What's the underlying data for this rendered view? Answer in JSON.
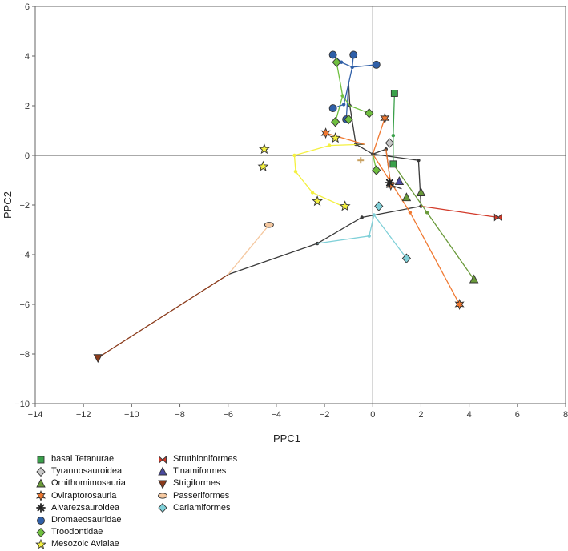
{
  "chart_data": {
    "type": "scatter",
    "title": "",
    "xlabel": "PPC1",
    "ylabel": "PPC2",
    "xlim": [
      -14,
      8
    ],
    "ylim": [
      -10,
      6
    ],
    "xticks": [
      -14,
      -12,
      -10,
      -8,
      -6,
      -4,
      -2,
      0,
      2,
      4,
      6,
      8
    ],
    "yticks": [
      -10,
      -8,
      -6,
      -4,
      -2,
      0,
      2,
      4,
      6
    ],
    "grid": false,
    "reference_lines": {
      "x": 0,
      "y": 0
    },
    "legend_position": "bottom-left",
    "series": [
      {
        "name": "basal Tetanurae",
        "marker": "square",
        "color": "#3aa04a",
        "points": [
          [
            0.9,
            2.5
          ],
          [
            0.85,
            -0.35
          ]
        ]
      },
      {
        "name": "Tyrannosauroidea",
        "marker": "diamond",
        "color": "#c8c8c8",
        "points": [
          [
            0.7,
            0.5
          ]
        ]
      },
      {
        "name": "Ornithomimosauria",
        "marker": "triangle",
        "color": "#6a9a3a",
        "points": [
          [
            1.4,
            -1.7
          ],
          [
            2.0,
            -1.5
          ],
          [
            4.2,
            -5.0
          ]
        ]
      },
      {
        "name": "Oviraptorosauria",
        "marker": "star6",
        "color": "#f07830",
        "points": [
          [
            -1.95,
            0.9
          ],
          [
            0.5,
            1.5
          ],
          [
            0.75,
            -1.2
          ],
          [
            3.6,
            -6.0
          ]
        ]
      },
      {
        "name": "Alvarezsauroidea",
        "marker": "asterisk",
        "color": "#222222",
        "points": [
          [
            0.7,
            -1.1
          ]
        ]
      },
      {
        "name": "Dromaeosauridae",
        "marker": "circle",
        "color": "#2f5fa8",
        "points": [
          [
            -1.65,
            4.05
          ],
          [
            -0.8,
            4.05
          ],
          [
            0.15,
            3.65
          ],
          [
            -1.65,
            1.9
          ],
          [
            -1.1,
            1.45
          ]
        ]
      },
      {
        "name": "Troodontidae",
        "marker": "diamond",
        "color": "#6fbf3f",
        "points": [
          [
            -1.5,
            3.75
          ],
          [
            -1.55,
            1.35
          ],
          [
            -1.0,
            1.45
          ],
          [
            -0.15,
            1.7
          ],
          [
            0.15,
            -0.6
          ]
        ]
      },
      {
        "name": "Mesozoic Avialae",
        "marker": "star5",
        "color": "#f4f040",
        "points": [
          [
            -4.5,
            0.25
          ],
          [
            -4.55,
            -0.45
          ],
          [
            -1.55,
            0.7
          ],
          [
            -2.3,
            -1.85
          ],
          [
            -1.15,
            -2.05
          ]
        ]
      },
      {
        "name": "Struthioniformes",
        "marker": "bowtie",
        "color": "#d23a2a",
        "points": [
          [
            5.2,
            -2.5
          ]
        ]
      },
      {
        "name": "Tinamiformes",
        "marker": "triangle",
        "color": "#4a4aa0",
        "points": [
          [
            1.1,
            -1.05
          ]
        ]
      },
      {
        "name": "Strigiformes",
        "marker": "triangle-down",
        "color": "#8a3a1a",
        "points": [
          [
            -11.4,
            -8.15
          ]
        ]
      },
      {
        "name": "Passeriformes",
        "marker": "ellipse",
        "color": "#f5c8a0",
        "points": [
          [
            -4.3,
            -2.8
          ]
        ]
      },
      {
        "name": "Cariamiformes",
        "marker": "diamond",
        "color": "#7fd0d8",
        "points": [
          [
            0.25,
            -2.05
          ],
          [
            1.4,
            -4.15
          ]
        ]
      }
    ],
    "tree_branches": [
      {
        "color": "#3a3a3a",
        "nodes": [
          [
            -6.0,
            -4.8
          ],
          [
            -2.3,
            -3.55
          ],
          [
            -0.45,
            -2.5
          ],
          [
            2.0,
            -2.05
          ],
          [
            1.9,
            -0.2
          ],
          [
            0.0,
            0.05
          ],
          [
            -0.7,
            0.45
          ],
          [
            -0.95,
            2.0
          ],
          [
            -1.0,
            2.9
          ]
        ]
      },
      {
        "color": "#3a3a3a",
        "nodes": [
          [
            0.0,
            0.05
          ],
          [
            0.55,
            0.25
          ],
          [
            0.75,
            -1.2
          ],
          [
            1.2,
            -1.35
          ]
        ]
      },
      {
        "color": "#f4f040",
        "nodes": [
          [
            -0.35,
            0.45
          ],
          [
            -1.8,
            0.4
          ],
          [
            -3.25,
            0.0
          ],
          [
            -3.2,
            -0.65
          ],
          [
            -2.5,
            -1.5
          ],
          [
            -1.25,
            -2.05
          ]
        ]
      },
      {
        "color": "#3a3a3a",
        "nodes": [
          [
            -0.35,
            0.45
          ],
          [
            -0.7,
            0.45
          ]
        ]
      },
      {
        "color": "#8a3a1a",
        "nodes": [
          [
            -6.0,
            -4.8
          ],
          [
            -11.4,
            -8.15
          ]
        ]
      },
      {
        "color": "#f5c8a0",
        "nodes": [
          [
            -6.0,
            -4.8
          ],
          [
            -4.3,
            -2.8
          ]
        ]
      },
      {
        "color": "#7fd0d8",
        "nodes": [
          [
            -2.3,
            -3.55
          ],
          [
            -0.15,
            -3.25
          ],
          [
            0.05,
            -2.4
          ],
          [
            1.4,
            -4.15
          ]
        ]
      },
      {
        "color": "#d23a2a",
        "nodes": [
          [
            2.0,
            -2.05
          ],
          [
            5.2,
            -2.5
          ]
        ]
      },
      {
        "color": "#6a9a3a",
        "nodes": [
          [
            0.85,
            -0.35
          ],
          [
            2.25,
            -2.3
          ],
          [
            4.2,
            -5.0
          ]
        ]
      },
      {
        "color": "#f07830",
        "nodes": [
          [
            0.0,
            0.05
          ],
          [
            1.55,
            -2.3
          ],
          [
            3.6,
            -6.0
          ]
        ]
      },
      {
        "color": "#f07830",
        "nodes": [
          [
            0.0,
            0.05
          ],
          [
            0.5,
            1.5
          ]
        ]
      },
      {
        "color": "#f07830",
        "nodes": [
          [
            -0.35,
            0.45
          ],
          [
            -1.95,
            0.9
          ]
        ]
      },
      {
        "color": "#2f5fa8",
        "nodes": [
          [
            -1.0,
            2.9
          ],
          [
            -0.85,
            3.55
          ],
          [
            -1.3,
            3.75
          ],
          [
            -1.65,
            4.05
          ]
        ]
      },
      {
        "color": "#2f5fa8",
        "nodes": [
          [
            -0.85,
            3.55
          ],
          [
            -0.8,
            4.05
          ]
        ]
      },
      {
        "color": "#2f5fa8",
        "nodes": [
          [
            -0.85,
            3.55
          ],
          [
            0.15,
            3.65
          ]
        ]
      },
      {
        "color": "#2f5fa8",
        "nodes": [
          [
            -1.0,
            2.9
          ],
          [
            -1.2,
            2.05
          ],
          [
            -1.65,
            1.9
          ]
        ]
      },
      {
        "color": "#2f5fa8",
        "nodes": [
          [
            -1.0,
            2.9
          ],
          [
            -1.1,
            1.45
          ]
        ]
      },
      {
        "color": "#6fbf3f",
        "nodes": [
          [
            -0.95,
            2.0
          ],
          [
            -1.25,
            2.4
          ],
          [
            -1.5,
            3.75
          ]
        ]
      },
      {
        "color": "#6fbf3f",
        "nodes": [
          [
            -1.25,
            2.4
          ],
          [
            -1.55,
            1.35
          ]
        ]
      },
      {
        "color": "#6fbf3f",
        "nodes": [
          [
            -0.95,
            2.0
          ],
          [
            -0.15,
            1.7
          ]
        ]
      },
      {
        "color": "#6fbf3f",
        "nodes": [
          [
            0.0,
            0.05
          ],
          [
            0.15,
            -0.6
          ]
        ]
      },
      {
        "color": "#3aa04a",
        "nodes": [
          [
            0.85,
            -0.35
          ],
          [
            0.85,
            0.8
          ],
          [
            0.9,
            2.5
          ]
        ]
      },
      {
        "color": "#f07830",
        "nodes": [
          [
            0.55,
            0.25
          ],
          [
            0.75,
            -1.2
          ]
        ]
      }
    ],
    "extra_markers": [
      {
        "marker": "plus",
        "color": "#c8a060",
        "points": [
          [
            -0.5,
            -0.2
          ]
        ]
      }
    ]
  },
  "legend": {
    "col_a": [
      {
        "label": "basal Tetanurae",
        "series": 0
      },
      {
        "label": "Tyrannosauroidea",
        "series": 1
      },
      {
        "label": "Ornithomimosauria",
        "series": 2
      },
      {
        "label": "Oviraptorosauria",
        "series": 3
      },
      {
        "label": "Alvarezsauroidea",
        "series": 4
      },
      {
        "label": "Dromaeosauridae",
        "series": 5
      },
      {
        "label": "Troodontidae",
        "series": 6
      },
      {
        "label": "Mesozoic Avialae",
        "series": 7
      }
    ],
    "col_b": [
      {
        "label": "Struthioniformes",
        "series": 8
      },
      {
        "label": "Tinamiformes",
        "series": 9
      },
      {
        "label": "Strigiformes",
        "series": 10
      },
      {
        "label": "Passeriformes",
        "series": 11
      },
      {
        "label": "Cariamiformes",
        "series": 12
      }
    ]
  }
}
